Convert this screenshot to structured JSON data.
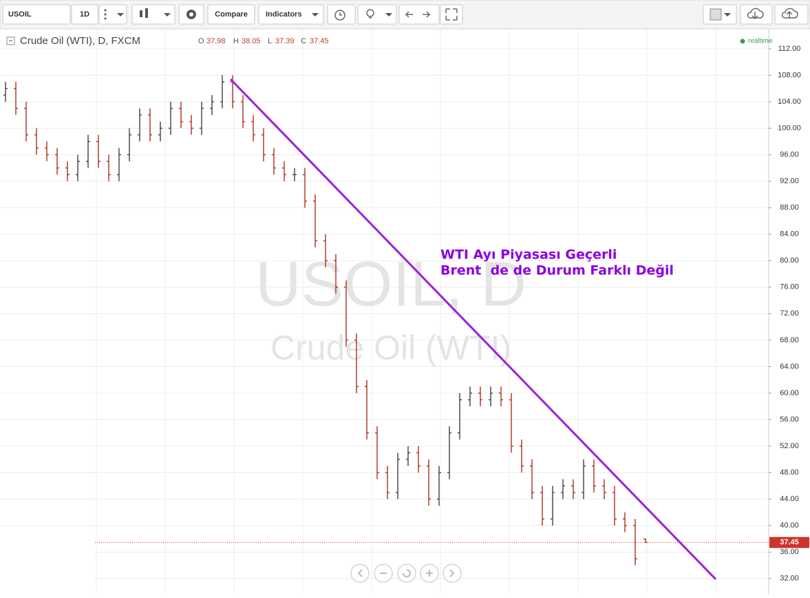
{
  "toolbar": {
    "symbol": "USOIL",
    "interval": "1D",
    "compare": "Compare",
    "indicators": "Indicators"
  },
  "chart_data": {
    "type": "ohlc",
    "title": "Crude Oil (WTI), D, FXCM",
    "ohlc_labels": [
      "O",
      "H",
      "L",
      "C"
    ],
    "status": "realtime",
    "watermark": [
      "USOIL, D",
      "Crude Oil (WTI)"
    ],
    "annotation": [
      "WTI Ayı Piyasası Geçerli",
      "Brent  de de Durum Farklı Değil"
    ],
    "annotation_color": "#8b00e0",
    "trendline": {
      "from": [
        21.8,
        107.4
      ],
      "to": [
        68.8,
        31.9
      ],
      "color": "#9b20d8"
    },
    "up_color": "#4a4a4a",
    "down_color": "#b03a2e",
    "last_price_color": "#d0332d",
    "open": [
      105,
      106,
      103,
      99,
      97,
      96,
      94,
      93,
      95,
      98,
      95,
      93,
      96,
      99,
      102,
      99,
      100,
      103,
      101,
      100,
      103,
      104,
      107,
      104,
      101,
      99,
      96,
      94,
      93,
      93,
      89,
      83,
      80,
      76,
      68,
      61,
      54,
      48,
      45,
      50,
      51,
      49,
      44,
      48,
      54,
      59,
      60,
      59,
      60,
      59,
      52,
      49,
      45,
      41,
      45,
      46,
      45,
      49,
      46,
      45,
      41,
      40,
      37.98
    ],
    "high": [
      107,
      107,
      104,
      100,
      98,
      97,
      95,
      96,
      99,
      99,
      96,
      97,
      100,
      103,
      103,
      101,
      104,
      104,
      102,
      104,
      105,
      108,
      108,
      105,
      102,
      100,
      97,
      95,
      94,
      94,
      90,
      84,
      81,
      77,
      69,
      62,
      55,
      49,
      51,
      52,
      52,
      50,
      49,
      55,
      60,
      61,
      61,
      61,
      61,
      60,
      53,
      50,
      46,
      46,
      47,
      47,
      50,
      50,
      47,
      46,
      42,
      41,
      38.05
    ],
    "low": [
      104,
      102,
      98,
      96,
      95,
      93,
      92,
      92,
      94,
      94,
      92,
      92,
      95,
      98,
      98,
      98,
      99,
      100,
      99,
      99,
      102,
      103,
      103,
      100,
      98,
      95,
      93,
      92,
      92,
      88,
      82,
      79,
      75,
      67,
      60,
      53,
      47,
      44,
      44,
      49,
      48,
      43,
      43,
      47,
      53,
      58,
      58,
      58,
      58,
      51,
      48,
      44,
      40,
      40,
      44,
      44,
      44,
      45,
      44,
      40,
      39,
      34,
      37.39
    ],
    "close": [
      106,
      103,
      99,
      97,
      96,
      94,
      93,
      95,
      98,
      95,
      93,
      96,
      99,
      102,
      99,
      100,
      103,
      101,
      100,
      103,
      104,
      107,
      104,
      101,
      99,
      96,
      94,
      93,
      93,
      89,
      83,
      80,
      76,
      68,
      61,
      54,
      48,
      45,
      50,
      51,
      49,
      44,
      48,
      54,
      59,
      60,
      59,
      60,
      59,
      52,
      49,
      45,
      41,
      45,
      46,
      45,
      49,
      46,
      45,
      41,
      40,
      35,
      37.45
    ],
    "ylim": [
      29.9,
      115
    ],
    "yticks": [
      {
        "value": 32,
        "label": "32.00"
      },
      {
        "value": 36,
        "label": "36.00"
      },
      {
        "value": 40,
        "label": "40.00"
      },
      {
        "value": 44,
        "label": "44.00"
      },
      {
        "value": 48,
        "label": "48.00"
      },
      {
        "value": 52,
        "label": "52.00"
      },
      {
        "value": 56,
        "label": "56.00"
      },
      {
        "value": 60,
        "label": "60.00"
      },
      {
        "value": 64,
        "label": "64.00"
      },
      {
        "value": 68,
        "label": "68.00"
      },
      {
        "value": 72,
        "label": "72.00"
      },
      {
        "value": 76,
        "label": "76.00"
      },
      {
        "value": 80,
        "label": "80.00"
      },
      {
        "value": 84,
        "label": "84.00"
      },
      {
        "value": 88,
        "label": "88.00"
      },
      {
        "value": 92,
        "label": "92.00"
      },
      {
        "value": 96,
        "label": "96.00"
      },
      {
        "value": 100,
        "label": "100.00"
      },
      {
        "value": 104,
        "label": "104.00"
      },
      {
        "value": 108,
        "label": "108.00"
      },
      {
        "value": 112,
        "label": "112.00"
      }
    ],
    "grid": true
  }
}
